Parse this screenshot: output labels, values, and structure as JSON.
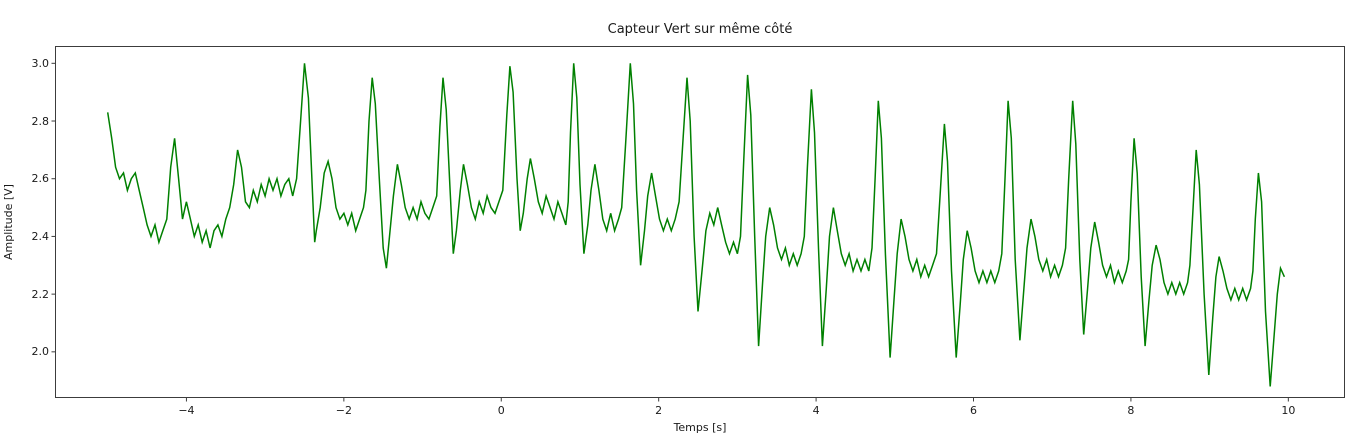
{
  "figure": {
    "background_color": "#ffffff",
    "spine_color": "#3c3c3c"
  },
  "chart_data": {
    "type": "line",
    "title": "Capteur Vert sur même côté",
    "xlabel": "Temps [s]",
    "ylabel": "Amplitude [V]",
    "legend": null,
    "grid": false,
    "line_color": "#008000",
    "line_width": 1.5,
    "xlim": [
      -5.67,
      10.72
    ],
    "ylim": [
      1.84,
      3.06
    ],
    "xticks": [
      -4,
      -2,
      0,
      2,
      4,
      6,
      8,
      10
    ],
    "xtick_labels": [
      "−4",
      "−2",
      "0",
      "2",
      "4",
      "6",
      "8",
      "10"
    ],
    "yticks": [
      2.0,
      2.2,
      2.4,
      2.6,
      2.8,
      3.0
    ],
    "ytick_labels": [
      "2.0",
      "2.2",
      "2.4",
      "2.6",
      "2.8",
      "3.0"
    ],
    "series_name": "Capteur Vert",
    "points": [
      [
        -5.0,
        2.83
      ],
      [
        -4.95,
        2.74
      ],
      [
        -4.9,
        2.64
      ],
      [
        -4.85,
        2.6
      ],
      [
        -4.8,
        2.62
      ],
      [
        -4.75,
        2.56
      ],
      [
        -4.7,
        2.6
      ],
      [
        -4.65,
        2.62
      ],
      [
        -4.6,
        2.56
      ],
      [
        -4.55,
        2.5
      ],
      [
        -4.5,
        2.44
      ],
      [
        -4.45,
        2.4
      ],
      [
        -4.4,
        2.44
      ],
      [
        -4.35,
        2.38
      ],
      [
        -4.3,
        2.42
      ],
      [
        -4.25,
        2.46
      ],
      [
        -4.2,
        2.64
      ],
      [
        -4.15,
        2.74
      ],
      [
        -4.1,
        2.6
      ],
      [
        -4.05,
        2.46
      ],
      [
        -4.0,
        2.52
      ],
      [
        -3.95,
        2.46
      ],
      [
        -3.9,
        2.4
      ],
      [
        -3.85,
        2.44
      ],
      [
        -3.8,
        2.38
      ],
      [
        -3.75,
        2.42
      ],
      [
        -3.7,
        2.36
      ],
      [
        -3.65,
        2.42
      ],
      [
        -3.6,
        2.44
      ],
      [
        -3.55,
        2.4
      ],
      [
        -3.5,
        2.46
      ],
      [
        -3.45,
        2.5
      ],
      [
        -3.4,
        2.58
      ],
      [
        -3.35,
        2.7
      ],
      [
        -3.3,
        2.64
      ],
      [
        -3.25,
        2.52
      ],
      [
        -3.2,
        2.5
      ],
      [
        -3.15,
        2.56
      ],
      [
        -3.1,
        2.52
      ],
      [
        -3.05,
        2.58
      ],
      [
        -3.0,
        2.54
      ],
      [
        -2.95,
        2.6
      ],
      [
        -2.9,
        2.56
      ],
      [
        -2.85,
        2.6
      ],
      [
        -2.8,
        2.54
      ],
      [
        -2.75,
        2.58
      ],
      [
        -2.7,
        2.6
      ],
      [
        -2.65,
        2.54
      ],
      [
        -2.6,
        2.6
      ],
      [
        -2.55,
        2.8
      ],
      [
        -2.5,
        3.0
      ],
      [
        -2.45,
        2.88
      ],
      [
        -2.4,
        2.56
      ],
      [
        -2.37,
        2.38
      ],
      [
        -2.35,
        2.42
      ],
      [
        -2.3,
        2.5
      ],
      [
        -2.25,
        2.62
      ],
      [
        -2.2,
        2.66
      ],
      [
        -2.15,
        2.6
      ],
      [
        -2.1,
        2.5
      ],
      [
        -2.05,
        2.46
      ],
      [
        -2.0,
        2.48
      ],
      [
        -1.95,
        2.44
      ],
      [
        -1.9,
        2.48
      ],
      [
        -1.85,
        2.42
      ],
      [
        -1.8,
        2.46
      ],
      [
        -1.75,
        2.5
      ],
      [
        -1.72,
        2.56
      ],
      [
        -1.68,
        2.8
      ],
      [
        -1.64,
        2.95
      ],
      [
        -1.6,
        2.86
      ],
      [
        -1.55,
        2.6
      ],
      [
        -1.5,
        2.36
      ],
      [
        -1.46,
        2.29
      ],
      [
        -1.42,
        2.4
      ],
      [
        -1.37,
        2.54
      ],
      [
        -1.32,
        2.65
      ],
      [
        -1.27,
        2.58
      ],
      [
        -1.22,
        2.5
      ],
      [
        -1.17,
        2.46
      ],
      [
        -1.12,
        2.5
      ],
      [
        -1.07,
        2.46
      ],
      [
        -1.02,
        2.52
      ],
      [
        -0.97,
        2.48
      ],
      [
        -0.92,
        2.46
      ],
      [
        -0.87,
        2.5
      ],
      [
        -0.82,
        2.54
      ],
      [
        -0.78,
        2.78
      ],
      [
        -0.74,
        2.95
      ],
      [
        -0.7,
        2.84
      ],
      [
        -0.65,
        2.56
      ],
      [
        -0.61,
        2.34
      ],
      [
        -0.57,
        2.42
      ],
      [
        -0.52,
        2.56
      ],
      [
        -0.48,
        2.65
      ],
      [
        -0.43,
        2.58
      ],
      [
        -0.38,
        2.5
      ],
      [
        -0.33,
        2.46
      ],
      [
        -0.28,
        2.52
      ],
      [
        -0.23,
        2.48
      ],
      [
        -0.18,
        2.54
      ],
      [
        -0.13,
        2.5
      ],
      [
        -0.08,
        2.48
      ],
      [
        -0.03,
        2.52
      ],
      [
        0.02,
        2.56
      ],
      [
        0.07,
        2.82
      ],
      [
        0.11,
        2.99
      ],
      [
        0.15,
        2.9
      ],
      [
        0.2,
        2.6
      ],
      [
        0.24,
        2.42
      ],
      [
        0.28,
        2.48
      ],
      [
        0.33,
        2.6
      ],
      [
        0.37,
        2.67
      ],
      [
        0.42,
        2.6
      ],
      [
        0.47,
        2.52
      ],
      [
        0.52,
        2.48
      ],
      [
        0.57,
        2.54
      ],
      [
        0.62,
        2.5
      ],
      [
        0.67,
        2.46
      ],
      [
        0.72,
        2.52
      ],
      [
        0.77,
        2.48
      ],
      [
        0.82,
        2.44
      ],
      [
        0.85,
        2.52
      ],
      [
        0.88,
        2.76
      ],
      [
        0.92,
        3.0
      ],
      [
        0.96,
        2.88
      ],
      [
        1.0,
        2.58
      ],
      [
        1.05,
        2.34
      ],
      [
        1.1,
        2.44
      ],
      [
        1.14,
        2.56
      ],
      [
        1.19,
        2.65
      ],
      [
        1.24,
        2.56
      ],
      [
        1.29,
        2.46
      ],
      [
        1.34,
        2.42
      ],
      [
        1.39,
        2.48
      ],
      [
        1.44,
        2.42
      ],
      [
        1.49,
        2.46
      ],
      [
        1.53,
        2.5
      ],
      [
        1.58,
        2.72
      ],
      [
        1.64,
        3.0
      ],
      [
        1.68,
        2.86
      ],
      [
        1.72,
        2.56
      ],
      [
        1.77,
        2.3
      ],
      [
        1.82,
        2.42
      ],
      [
        1.86,
        2.54
      ],
      [
        1.91,
        2.62
      ],
      [
        1.96,
        2.54
      ],
      [
        2.01,
        2.46
      ],
      [
        2.06,
        2.42
      ],
      [
        2.11,
        2.46
      ],
      [
        2.16,
        2.42
      ],
      [
        2.21,
        2.46
      ],
      [
        2.26,
        2.52
      ],
      [
        2.31,
        2.74
      ],
      [
        2.36,
        2.95
      ],
      [
        2.4,
        2.8
      ],
      [
        2.45,
        2.4
      ],
      [
        2.5,
        2.14
      ],
      [
        2.55,
        2.28
      ],
      [
        2.6,
        2.42
      ],
      [
        2.65,
        2.48
      ],
      [
        2.7,
        2.44
      ],
      [
        2.75,
        2.5
      ],
      [
        2.8,
        2.44
      ],
      [
        2.85,
        2.38
      ],
      [
        2.9,
        2.34
      ],
      [
        2.95,
        2.38
      ],
      [
        3.0,
        2.34
      ],
      [
        3.04,
        2.4
      ],
      [
        3.08,
        2.66
      ],
      [
        3.13,
        2.96
      ],
      [
        3.17,
        2.82
      ],
      [
        3.22,
        2.4
      ],
      [
        3.27,
        2.02
      ],
      [
        3.32,
        2.24
      ],
      [
        3.36,
        2.4
      ],
      [
        3.41,
        2.5
      ],
      [
        3.46,
        2.44
      ],
      [
        3.51,
        2.36
      ],
      [
        3.56,
        2.32
      ],
      [
        3.61,
        2.36
      ],
      [
        3.66,
        2.3
      ],
      [
        3.71,
        2.34
      ],
      [
        3.76,
        2.3
      ],
      [
        3.81,
        2.34
      ],
      [
        3.85,
        2.4
      ],
      [
        3.89,
        2.64
      ],
      [
        3.94,
        2.91
      ],
      [
        3.98,
        2.76
      ],
      [
        4.03,
        2.36
      ],
      [
        4.08,
        2.02
      ],
      [
        4.13,
        2.22
      ],
      [
        4.17,
        2.4
      ],
      [
        4.22,
        2.5
      ],
      [
        4.27,
        2.42
      ],
      [
        4.32,
        2.34
      ],
      [
        4.37,
        2.3
      ],
      [
        4.42,
        2.34
      ],
      [
        4.47,
        2.28
      ],
      [
        4.52,
        2.32
      ],
      [
        4.57,
        2.28
      ],
      [
        4.62,
        2.32
      ],
      [
        4.67,
        2.28
      ],
      [
        4.71,
        2.36
      ],
      [
        4.75,
        2.6
      ],
      [
        4.79,
        2.87
      ],
      [
        4.83,
        2.74
      ],
      [
        4.88,
        2.34
      ],
      [
        4.94,
        1.98
      ],
      [
        4.99,
        2.18
      ],
      [
        5.03,
        2.34
      ],
      [
        5.08,
        2.46
      ],
      [
        5.13,
        2.4
      ],
      [
        5.18,
        2.32
      ],
      [
        5.23,
        2.28
      ],
      [
        5.28,
        2.32
      ],
      [
        5.33,
        2.26
      ],
      [
        5.38,
        2.3
      ],
      [
        5.43,
        2.26
      ],
      [
        5.48,
        2.3
      ],
      [
        5.53,
        2.34
      ],
      [
        5.58,
        2.56
      ],
      [
        5.63,
        2.79
      ],
      [
        5.67,
        2.66
      ],
      [
        5.72,
        2.28
      ],
      [
        5.78,
        1.98
      ],
      [
        5.83,
        2.16
      ],
      [
        5.87,
        2.32
      ],
      [
        5.92,
        2.42
      ],
      [
        5.97,
        2.36
      ],
      [
        6.02,
        2.28
      ],
      [
        6.07,
        2.24
      ],
      [
        6.12,
        2.28
      ],
      [
        6.17,
        2.24
      ],
      [
        6.22,
        2.28
      ],
      [
        6.27,
        2.24
      ],
      [
        6.32,
        2.28
      ],
      [
        6.36,
        2.34
      ],
      [
        6.4,
        2.6
      ],
      [
        6.44,
        2.87
      ],
      [
        6.48,
        2.74
      ],
      [
        6.53,
        2.32
      ],
      [
        6.59,
        2.04
      ],
      [
        6.64,
        2.22
      ],
      [
        6.68,
        2.36
      ],
      [
        6.73,
        2.46
      ],
      [
        6.78,
        2.4
      ],
      [
        6.83,
        2.32
      ],
      [
        6.88,
        2.28
      ],
      [
        6.93,
        2.32
      ],
      [
        6.98,
        2.26
      ],
      [
        7.03,
        2.3
      ],
      [
        7.08,
        2.26
      ],
      [
        7.13,
        2.3
      ],
      [
        7.17,
        2.36
      ],
      [
        7.21,
        2.6
      ],
      [
        7.26,
        2.87
      ],
      [
        7.3,
        2.72
      ],
      [
        7.35,
        2.32
      ],
      [
        7.4,
        2.06
      ],
      [
        7.45,
        2.22
      ],
      [
        7.49,
        2.36
      ],
      [
        7.54,
        2.45
      ],
      [
        7.59,
        2.38
      ],
      [
        7.64,
        2.3
      ],
      [
        7.69,
        2.26
      ],
      [
        7.74,
        2.3
      ],
      [
        7.79,
        2.24
      ],
      [
        7.84,
        2.28
      ],
      [
        7.89,
        2.24
      ],
      [
        7.94,
        2.28
      ],
      [
        7.97,
        2.32
      ],
      [
        8.0,
        2.52
      ],
      [
        8.04,
        2.74
      ],
      [
        8.08,
        2.62
      ],
      [
        8.13,
        2.26
      ],
      [
        8.18,
        2.02
      ],
      [
        8.23,
        2.18
      ],
      [
        8.27,
        2.3
      ],
      [
        8.32,
        2.37
      ],
      [
        8.37,
        2.32
      ],
      [
        8.42,
        2.24
      ],
      [
        8.47,
        2.2
      ],
      [
        8.52,
        2.24
      ],
      [
        8.57,
        2.2
      ],
      [
        8.62,
        2.24
      ],
      [
        8.67,
        2.2
      ],
      [
        8.72,
        2.24
      ],
      [
        8.75,
        2.3
      ],
      [
        8.79,
        2.5
      ],
      [
        8.83,
        2.7
      ],
      [
        8.87,
        2.58
      ],
      [
        8.93,
        2.2
      ],
      [
        8.99,
        1.92
      ],
      [
        9.04,
        2.12
      ],
      [
        9.08,
        2.26
      ],
      [
        9.12,
        2.33
      ],
      [
        9.17,
        2.28
      ],
      [
        9.22,
        2.22
      ],
      [
        9.27,
        2.18
      ],
      [
        9.32,
        2.22
      ],
      [
        9.37,
        2.18
      ],
      [
        9.42,
        2.22
      ],
      [
        9.47,
        2.18
      ],
      [
        9.52,
        2.22
      ],
      [
        9.55,
        2.28
      ],
      [
        9.58,
        2.46
      ],
      [
        9.62,
        2.62
      ],
      [
        9.66,
        2.52
      ],
      [
        9.71,
        2.14
      ],
      [
        9.77,
        1.88
      ],
      [
        9.82,
        2.06
      ],
      [
        9.86,
        2.2
      ],
      [
        9.9,
        2.29
      ],
      [
        9.95,
        2.26
      ]
    ]
  }
}
